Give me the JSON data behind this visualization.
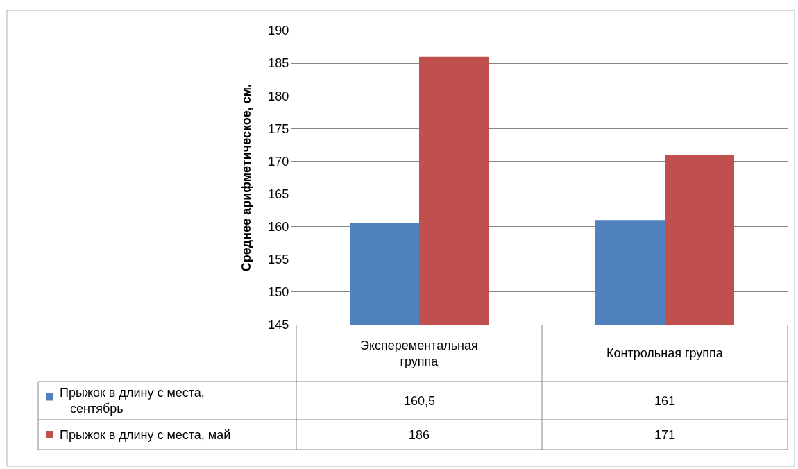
{
  "chart_data": {
    "type": "bar",
    "ylabel": "Среднее арифметическое, см.",
    "categories": [
      "Эксперементальная группа",
      "Контрольная группа"
    ],
    "series": [
      {
        "name": "Прыжок в длину с места, сентябрь",
        "color": "#4f81bd",
        "values": [
          160.5,
          161
        ],
        "value_labels": [
          "160,5",
          "161"
        ]
      },
      {
        "name": "Прыжок в длину с места, май",
        "color": "#c0504d",
        "values": [
          186,
          171
        ],
        "value_labels": [
          "186",
          "171"
        ]
      }
    ],
    "ylim": [
      145,
      190
    ],
    "yticks": [
      145,
      150,
      155,
      160,
      165,
      170,
      175,
      180,
      185,
      190
    ],
    "grid": "y",
    "legend": "bottom"
  }
}
